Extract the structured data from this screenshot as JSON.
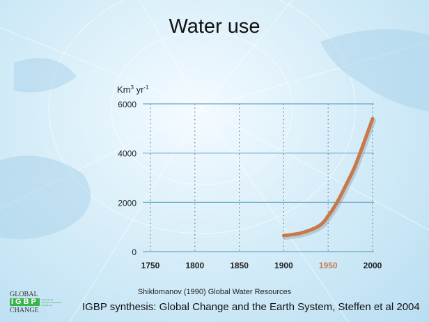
{
  "title": "Water use",
  "chart_data": {
    "type": "line",
    "title": "Water use",
    "ylabel": "Km³ yr⁻¹",
    "ylabel_base": "Km",
    "ylabel_sup1": "3",
    "ylabel_unit": " yr",
    "ylabel_sup2": "-1",
    "xlim": [
      1750,
      2000
    ],
    "ylim": [
      0,
      6000
    ],
    "x_ticks": [
      1750,
      1800,
      1850,
      1900,
      1950,
      2000
    ],
    "y_ticks": [
      0,
      2000,
      4000,
      6000
    ],
    "highlighted_tick": 1950,
    "grid": true,
    "series": [
      {
        "color": "#c8784a",
        "x": [
          1900,
          1920,
          1940,
          1950,
          1960,
          1970,
          1980,
          1990,
          2000
        ],
        "y": [
          650,
          760,
          1050,
          1450,
          2000,
          2700,
          3450,
          4400,
          5400
        ]
      }
    ]
  },
  "colors": {
    "line": "#c8784a",
    "highlight_tick": "#c8784a",
    "grid": "#6aa6c4"
  },
  "citation_source": "Shiklomanov (1990) Global Water Resources",
  "citation_synthesis": "IGBP synthesis: Global Change and the Earth System, Steffen et al 2004",
  "logo": {
    "top": "GLOBAL",
    "mid": "IGBP",
    "small": "International Geosphere-Biosphere Programme",
    "bottom": "CHANGE"
  }
}
